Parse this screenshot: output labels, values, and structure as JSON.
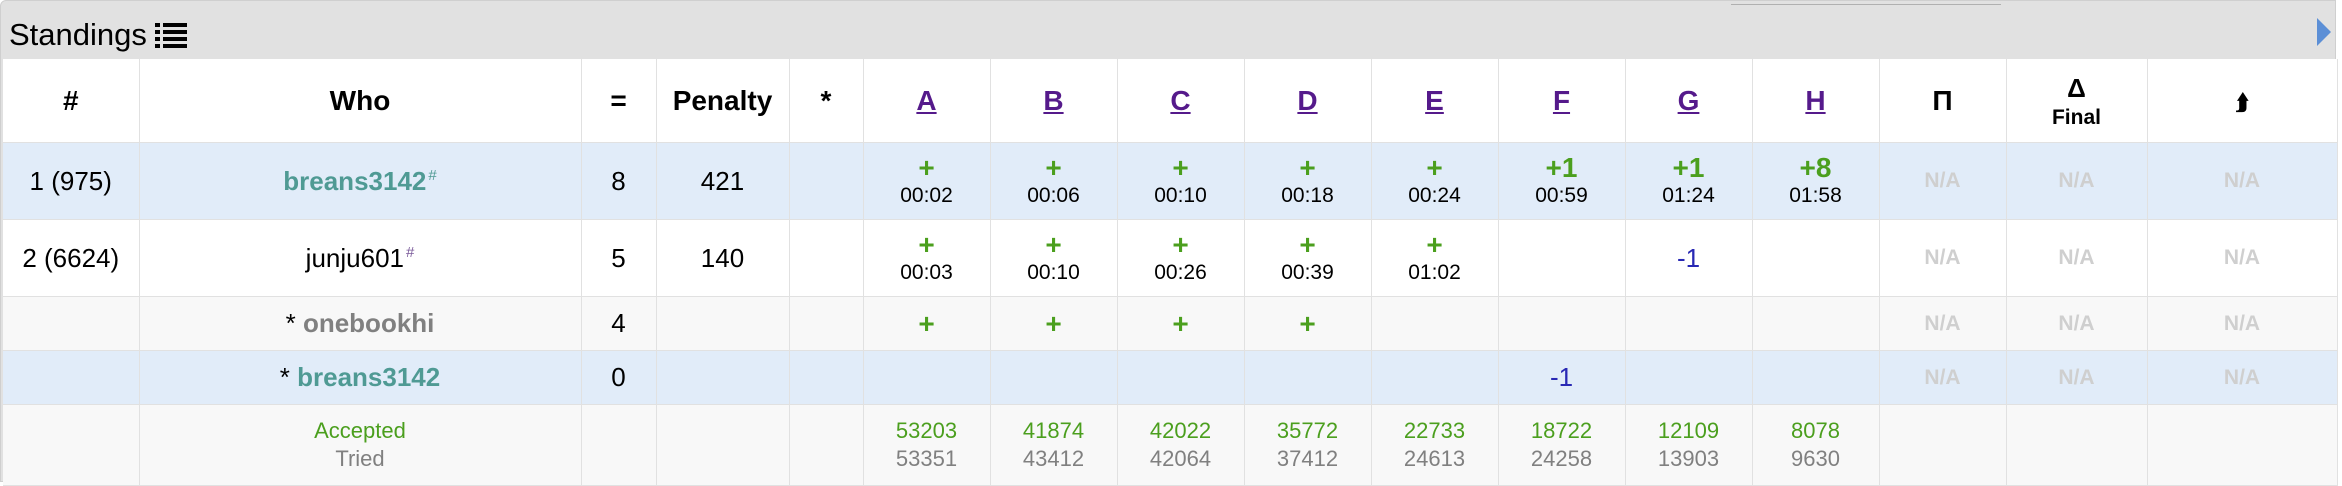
{
  "panel": {
    "title": "Standings"
  },
  "headers": {
    "rank": "#",
    "who": "Who",
    "solved": "=",
    "penalty": "Penalty",
    "hacks": "*",
    "problems": [
      "A",
      "B",
      "C",
      "D",
      "E",
      "F",
      "G",
      "H"
    ],
    "pi": "Π",
    "delta": "Δ",
    "final": "Final",
    "rating_change": "⮭"
  },
  "rows": [
    {
      "rank": "1 (975)",
      "who_prefix": "",
      "handle": "breans3142",
      "mark": "#",
      "solved": "8",
      "penalty": "421",
      "hacks": "",
      "cells": [
        {
          "res": "+",
          "time": "00:02"
        },
        {
          "res": "+",
          "time": "00:06"
        },
        {
          "res": "+",
          "time": "00:10"
        },
        {
          "res": "+",
          "time": "00:18"
        },
        {
          "res": "+",
          "time": "00:24"
        },
        {
          "res": "+1",
          "time": "00:59"
        },
        {
          "res": "+1",
          "time": "01:24"
        },
        {
          "res": "+8",
          "time": "01:58"
        }
      ],
      "pi": "N/A",
      "delta": "N/A",
      "change": "N/A"
    },
    {
      "rank": "2 (6624)",
      "who_prefix": "",
      "handle": "junju601",
      "mark": "#",
      "solved": "5",
      "penalty": "140",
      "hacks": "",
      "cells": [
        {
          "res": "+",
          "time": "00:03"
        },
        {
          "res": "+",
          "time": "00:10"
        },
        {
          "res": "+",
          "time": "00:26"
        },
        {
          "res": "+",
          "time": "00:39"
        },
        {
          "res": "+",
          "time": "01:02"
        },
        {
          "res": "",
          "time": ""
        },
        {
          "rej": "-1"
        },
        {
          "res": "",
          "time": ""
        }
      ],
      "pi": "N/A",
      "delta": "N/A",
      "change": "N/A"
    },
    {
      "rank": "",
      "who_prefix": "* ",
      "handle": "onebookhi",
      "mark": "",
      "solved": "4",
      "penalty": "",
      "hacks": "",
      "cells": [
        {
          "res": "+"
        },
        {
          "res": "+"
        },
        {
          "res": "+"
        },
        {
          "res": "+"
        },
        {
          "res": ""
        },
        {
          "res": ""
        },
        {
          "res": ""
        },
        {
          "res": ""
        }
      ],
      "pi": "N/A",
      "delta": "N/A",
      "change": "N/A"
    },
    {
      "rank": "",
      "who_prefix": "* ",
      "handle": "breans3142",
      "mark": "",
      "solved": "0",
      "penalty": "",
      "hacks": "",
      "cells": [
        {
          "res": ""
        },
        {
          "res": ""
        },
        {
          "res": ""
        },
        {
          "res": ""
        },
        {
          "res": ""
        },
        {
          "rej": "-1"
        },
        {
          "res": ""
        },
        {
          "res": ""
        }
      ],
      "pi": "N/A",
      "delta": "N/A",
      "change": "N/A"
    }
  ],
  "stats": {
    "accepted_label": "Accepted",
    "tried_label": "Tried",
    "accepted": [
      "53203",
      "41874",
      "42022",
      "35772",
      "22733",
      "18722",
      "12109",
      "8078"
    ],
    "tried": [
      "53351",
      "43412",
      "42064",
      "37412",
      "24613",
      "24258",
      "13903",
      "9630"
    ]
  },
  "colors": {
    "accepted": "#4b9f1e",
    "rejected": "#2828b4",
    "handle": "#4f9a94",
    "row_highlight": "#e1ecf9",
    "link": "#551a8b"
  }
}
